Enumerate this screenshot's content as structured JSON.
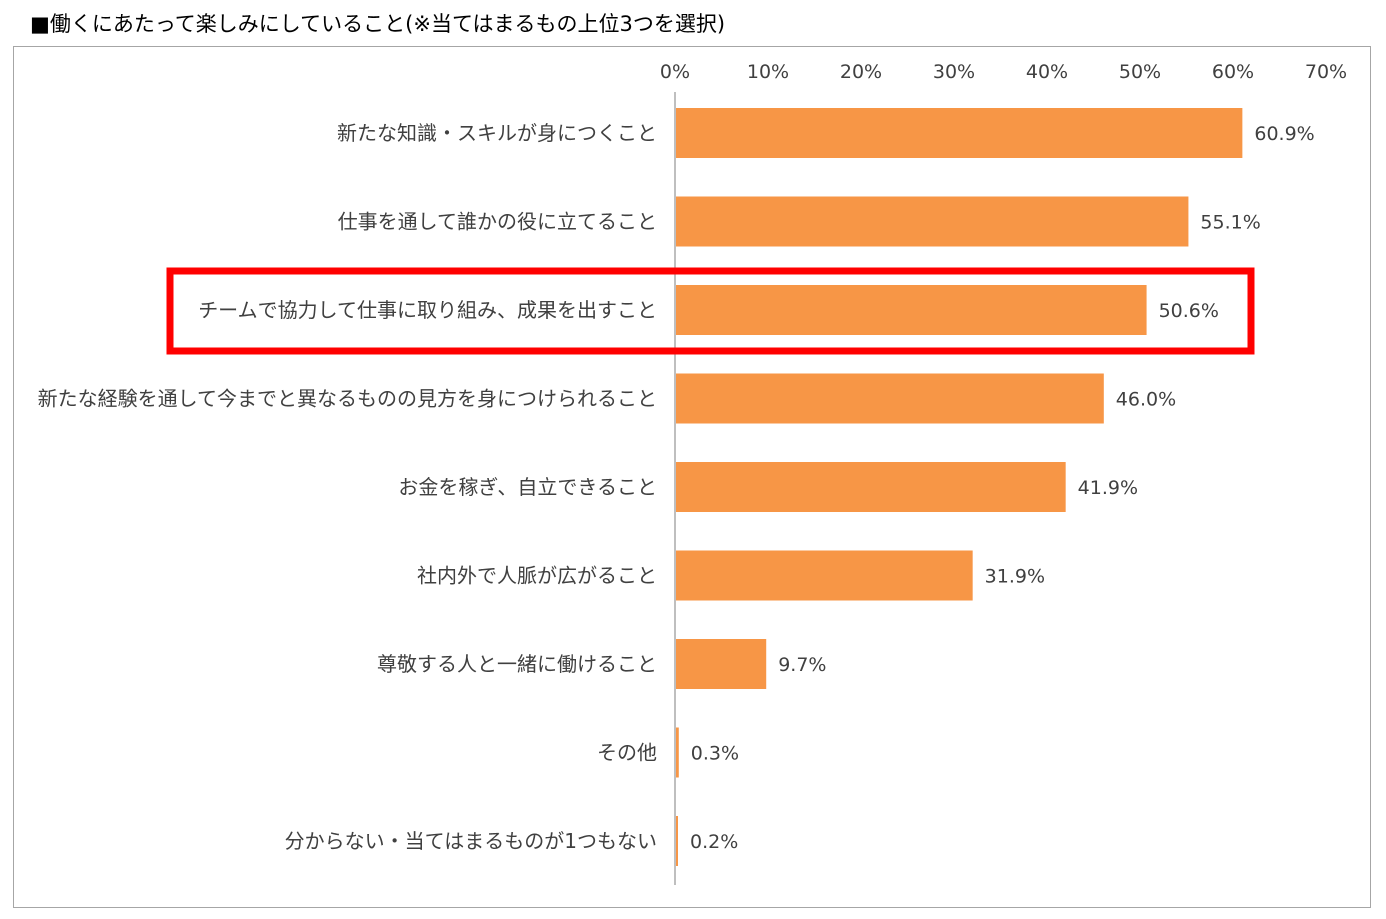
{
  "title": "■働くにあたって楽しみにしていること(※当てはまるもの上位3つを選択)",
  "colors": {
    "bar": "#f79646",
    "highlight": "#ff0000",
    "axis": "#bfbfbf",
    "frame": "#a6a6a6"
  },
  "chart_data": {
    "type": "bar",
    "orientation": "horizontal",
    "title": "■働くにあたって楽しみにしていること(※当てはまるもの上位3つを選択)",
    "categories": [
      "新たな知識・スキルが身につくこと",
      "仕事を通して誰かの役に立てること",
      "チームで協力して仕事に取り組み、成果を出すこと",
      "新たな経験を通して今までと異なるものの見方を身につけられること",
      "お金を稼ぎ、自立できること",
      "社内外で人脈が広がること",
      "尊敬する人と一緒に働けること",
      "その他",
      "分からない・当てはまるものが1つもない"
    ],
    "values": [
      60.9,
      55.1,
      50.6,
      46.0,
      41.9,
      31.9,
      9.7,
      0.3,
      0.2
    ],
    "value_labels": [
      "60.9%",
      "55.1%",
      "50.6%",
      "46.0%",
      "41.9%",
      "31.9%",
      "9.7%",
      "0.3%",
      "0.2%"
    ],
    "xlim": [
      0,
      70
    ],
    "xticks": [
      "0%",
      "10%",
      "20%",
      "30%",
      "40%",
      "50%",
      "60%",
      "70%"
    ],
    "x_axis_position": "top",
    "grid": false,
    "highlighted_category_index": 2
  }
}
